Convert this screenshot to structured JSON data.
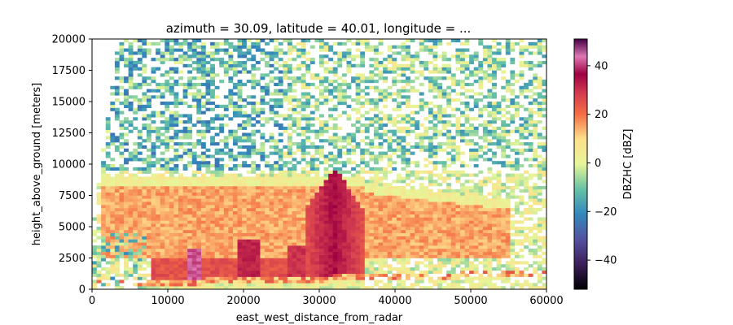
{
  "chart_data": {
    "type": "heatmap",
    "title": "azimuth = 30.09, latitude = 40.01, longitude = ...",
    "xlabel": "east_west_distance_from_radar",
    "ylabel": "height_above_ground [meters]",
    "colorbar_label": "DBZHC [dBZ]",
    "xlim": [
      0,
      60000
    ],
    "ylim": [
      0,
      20000
    ],
    "xticks": [
      0,
      10000,
      20000,
      30000,
      40000,
      50000,
      60000
    ],
    "yticks": [
      0,
      2500,
      5000,
      7500,
      10000,
      12500,
      15000,
      17500,
      20000
    ],
    "colorbar_range": [
      -52,
      51
    ],
    "colorbar_ticks": [
      -40,
      -20,
      0,
      20,
      40
    ],
    "colormap": "Spectral_r",
    "grid": false,
    "features": {
      "beam_top_edge": [
        [
          0,
          4500
        ],
        [
          3500,
          20000
        ]
      ],
      "echo_top_height": 9500,
      "storm_core": {
        "x": 32000,
        "peak_height": 9800,
        "value": 35
      },
      "bright_core": {
        "x": 13500,
        "height": 2500,
        "value": 45
      },
      "stratiform_layer": {
        "x_range": [
          1500,
          55000
        ],
        "height_range": [
          3000,
          8500
        ],
        "value": 15
      },
      "ground_clutter_line": {
        "x_range": [
          0,
          60000
        ],
        "height_range": [
          200,
          1500
        ]
      }
    }
  }
}
